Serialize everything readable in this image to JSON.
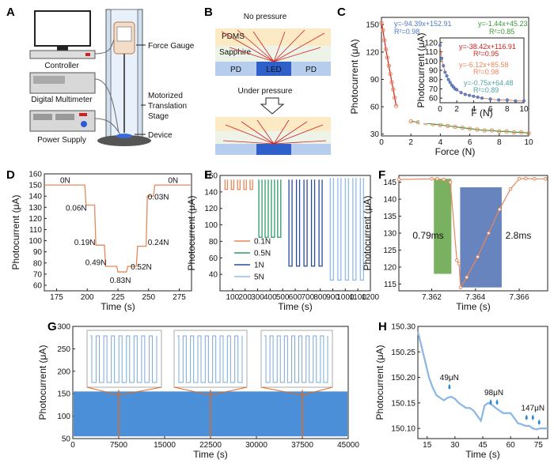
{
  "panels": {
    "A": {
      "label": "A",
      "components": [
        "Controller",
        "Digital Multimeter",
        "Power Supply",
        "Force Gauge",
        "Motorized",
        "Translation",
        "Stage",
        "Device"
      ]
    },
    "B": {
      "label": "B",
      "no_pressure": "No pressure",
      "under_pressure": "Under pressure",
      "layers": [
        "PDMS",
        "Sapphire"
      ],
      "pd_label": "PD",
      "led_label": "LED"
    },
    "C": {
      "label": "C"
    },
    "D": {
      "label": "D"
    },
    "E": {
      "label": "E"
    },
    "F": {
      "label": "F"
    },
    "G": {
      "label": "G"
    },
    "H": {
      "label": "H"
    }
  },
  "colors": {
    "orange": "#e8865a",
    "green": "#3a9a3a",
    "blue": "#4a78c8",
    "red": "#d02020",
    "lightblue": "#9cc3e8",
    "fill": "#4a8fd8"
  },
  "chart_data": [
    {
      "id": "C",
      "type": "scatter",
      "xlabel": "Force (N)",
      "ylabel": "Photocurrent (μA)",
      "xlim": [
        0,
        10
      ],
      "ylim": [
        28,
        158
      ],
      "xticks": [
        0,
        2,
        4,
        6,
        8,
        10
      ],
      "yticks": [
        30,
        60,
        90,
        120,
        150
      ],
      "series": [
        {
          "name": "fit1",
          "x": [
            0,
            0.1,
            0.2,
            0.3,
            0.4,
            0.5,
            0.6,
            0.7,
            0.8,
            0.9,
            1.0
          ],
          "y": [
            152,
            144,
            133,
            123,
            114,
            105,
            96,
            87,
            79,
            70,
            61
          ]
        },
        {
          "name": "fit2",
          "x": [
            2,
            2.5,
            3,
            3.5,
            4,
            4.5,
            5,
            5.5,
            6,
            6.5,
            7,
            7.5,
            8,
            8.5,
            9,
            9.5,
            10
          ],
          "y": [
            44,
            43,
            42,
            41,
            40,
            39,
            38,
            37,
            36,
            35,
            34,
            34,
            33,
            33,
            32,
            32,
            31
          ]
        }
      ],
      "annotations": [
        {
          "text": "y=-94.39x+152.91",
          "color": "#4a78c8"
        },
        {
          "text": "R²=0.98",
          "color": "#4a78c8"
        },
        {
          "text": "y=-1.44x+45.23",
          "color": "#3a9a3a"
        },
        {
          "text": "R²=0.85",
          "color": "#3a9a3a"
        }
      ],
      "inset": {
        "type": "scatter",
        "xlabel": "F (N)",
        "ylabel": "Photocurrent (μA)",
        "xlim": [
          0,
          10
        ],
        "ylim": [
          55,
          125
        ],
        "xticks": [
          0,
          2,
          4,
          6,
          8,
          10
        ],
        "yticks": [
          60,
          70,
          80,
          90,
          100,
          110,
          120
        ],
        "x": [
          0,
          0.2,
          0.4,
          0.6,
          0.8,
          1.0,
          1.2,
          1.4,
          1.6,
          1.8,
          2.0,
          2.5,
          3.0,
          3.5,
          4.0,
          4.5,
          5.0,
          6.0,
          7.0,
          8.0,
          9.0,
          10.0
        ],
        "y": [
          117,
          103,
          95,
          88,
          84,
          80,
          77,
          74,
          72,
          70,
          69,
          66,
          64,
          63,
          62,
          61,
          60,
          59,
          58,
          58,
          57,
          57
        ],
        "annotations": [
          {
            "text": "y=-38.42x+116.91",
            "color": "#d02020"
          },
          {
            "text": "R²=0.95",
            "color": "#d02020"
          },
          {
            "text": "y=-6.12x+85.58",
            "color": "#e8865a"
          },
          {
            "text": "R²=0.98",
            "color": "#e8865a"
          },
          {
            "text": "y=-0.75x+64.48",
            "color": "#4aa8a0"
          },
          {
            "text": "R²=0.89",
            "color": "#4aa8a0"
          }
        ]
      }
    },
    {
      "id": "D",
      "type": "line",
      "xlabel": "Time (s)",
      "ylabel": "Photocurrent (μA)",
      "xlim": [
        165,
        285
      ],
      "ylim": [
        55,
        160
      ],
      "xticks": [
        175,
        200,
        225,
        250,
        275
      ],
      "yticks": [
        60,
        70,
        80,
        90,
        100,
        110,
        120,
        130,
        140,
        150,
        160
      ],
      "x": [
        165,
        198,
        199,
        206,
        207,
        214,
        215,
        224,
        225,
        232,
        233,
        240,
        241,
        248,
        249,
        254,
        255,
        285
      ],
      "y": [
        150,
        150,
        132,
        132,
        96,
        96,
        77,
        77,
        72,
        72,
        77,
        77,
        95,
        95,
        140,
        140,
        150,
        150
      ],
      "labels": [
        {
          "text": "0N",
          "x": 182,
          "y": 152
        },
        {
          "text": "0.06N",
          "x": 191,
          "y": 127
        },
        {
          "text": "0.19N",
          "x": 198,
          "y": 96
        },
        {
          "text": "0.49N",
          "x": 207,
          "y": 78
        },
        {
          "text": "0.83N",
          "x": 227,
          "y": 62
        },
        {
          "text": "0.52N",
          "x": 244,
          "y": 74
        },
        {
          "text": "0.24N",
          "x": 258,
          "y": 96
        },
        {
          "text": "0.03N",
          "x": 258,
          "y": 137
        },
        {
          "text": "0N",
          "x": 270,
          "y": 152
        }
      ]
    },
    {
      "id": "E",
      "type": "line",
      "xlabel": "Time (s)",
      "ylabel": "Photocurrent (μA)",
      "xlim": [
        0,
        1200
      ],
      "ylim": [
        20,
        160
      ],
      "xticks": [
        100,
        200,
        300,
        400,
        500,
        600,
        700,
        800,
        900,
        1000,
        1100,
        1200
      ],
      "yticks": [
        40,
        60,
        80,
        100,
        120,
        140,
        160
      ],
      "series": [
        {
          "name": "0.1N",
          "color": "#e8865a",
          "pulse_starts": [
            40,
            90,
            140,
            190,
            240
          ],
          "width": 20,
          "low": 143,
          "high": 155
        },
        {
          "name": "0.5N",
          "color": "#2e9a6a",
          "pulse_starts": [
            310,
            360,
            410,
            460
          ],
          "width": 25,
          "low": 85,
          "high": 155
        },
        {
          "name": "1N",
          "color": "#284a9a",
          "pulse_starts": [
            550,
            610,
            670,
            730,
            790
          ],
          "width": 25,
          "low": 50,
          "high": 155
        },
        {
          "name": "5N",
          "color": "#90bde8",
          "pulse_starts": [
            880,
            940,
            1000,
            1060,
            1120
          ],
          "width": 25,
          "low": 33,
          "high": 157
        }
      ],
      "legend": [
        "0.1N",
        "0.5N",
        "1N",
        "5N"
      ]
    },
    {
      "id": "F",
      "type": "line",
      "xlabel": "Time (s)",
      "ylabel": "Photocurrent (μA)",
      "xlim": [
        7.3605,
        7.3673
      ],
      "ylim": [
        113,
        147
      ],
      "xticks": [
        7.362,
        7.364,
        7.366
      ],
      "yticks": [
        115,
        120,
        125,
        130,
        135,
        140,
        145
      ],
      "x": [
        7.3605,
        7.362,
        7.36225,
        7.36255,
        7.36285,
        7.36315,
        7.36325,
        7.36332,
        7.3636,
        7.3641,
        7.3646,
        7.3651,
        7.3656,
        7.366,
        7.3663,
        7.3667,
        7.3672
      ],
      "y": [
        145.8,
        146,
        146,
        145.8,
        145,
        122,
        121,
        114,
        117,
        123,
        130,
        137,
        143,
        146,
        146.1,
        146,
        146
      ],
      "annotations": [
        {
          "text": "0.79ms",
          "color": "#3a9a3a"
        },
        {
          "text": "2.8ms",
          "color": "#4a78c8"
        }
      ]
    },
    {
      "id": "G",
      "type": "area",
      "xlabel": "Time (s)",
      "ylabel": "Photocurrent (μA)",
      "xlim": [
        0,
        45000
      ],
      "ylim": [
        50,
        300
      ],
      "xticks": [
        0,
        7500,
        15000,
        22500,
        30000,
        37500,
        45000
      ],
      "yticks": [
        50,
        100,
        150,
        200,
        250,
        300
      ],
      "band_low": 55,
      "band_high": 155,
      "zoom_markers": [
        7500,
        22500,
        37500
      ]
    },
    {
      "id": "H",
      "type": "line",
      "xlabel": "Time (s)",
      "ylabel": "Photocurrent (μA)",
      "xlim": [
        10,
        80
      ],
      "ylim": [
        150.08,
        150.3
      ],
      "xticks": [
        15,
        30,
        45,
        60,
        75
      ],
      "yticks": [
        150.1,
        150.15,
        150.2,
        150.25,
        150.3
      ],
      "x": [
        10,
        12,
        14,
        16,
        18,
        20,
        22,
        24,
        26,
        28,
        30,
        32,
        34,
        36,
        38,
        40,
        42,
        44,
        46,
        48,
        50,
        52,
        54,
        56,
        58,
        60,
        62,
        64,
        66,
        68,
        70,
        72,
        74,
        76,
        78,
        80
      ],
      "y": [
        150.29,
        150.26,
        150.23,
        150.2,
        150.18,
        150.165,
        150.16,
        150.155,
        150.16,
        150.162,
        150.158,
        150.15,
        150.145,
        150.14,
        150.14,
        150.135,
        150.125,
        150.115,
        150.145,
        150.15,
        150.146,
        150.14,
        150.135,
        150.13,
        150.13,
        150.13,
        150.12,
        150.11,
        150.108,
        150.105,
        150.105,
        150.1,
        150.098,
        150.1,
        150.1,
        150.1
      ],
      "annotations": [
        {
          "text": "49μN",
          "x": 27,
          "y": 150.195
        },
        {
          "text": "98μN",
          "x": 51,
          "y": 150.165
        },
        {
          "text": "147μN",
          "x": 72,
          "y": 150.135
        }
      ]
    }
  ]
}
